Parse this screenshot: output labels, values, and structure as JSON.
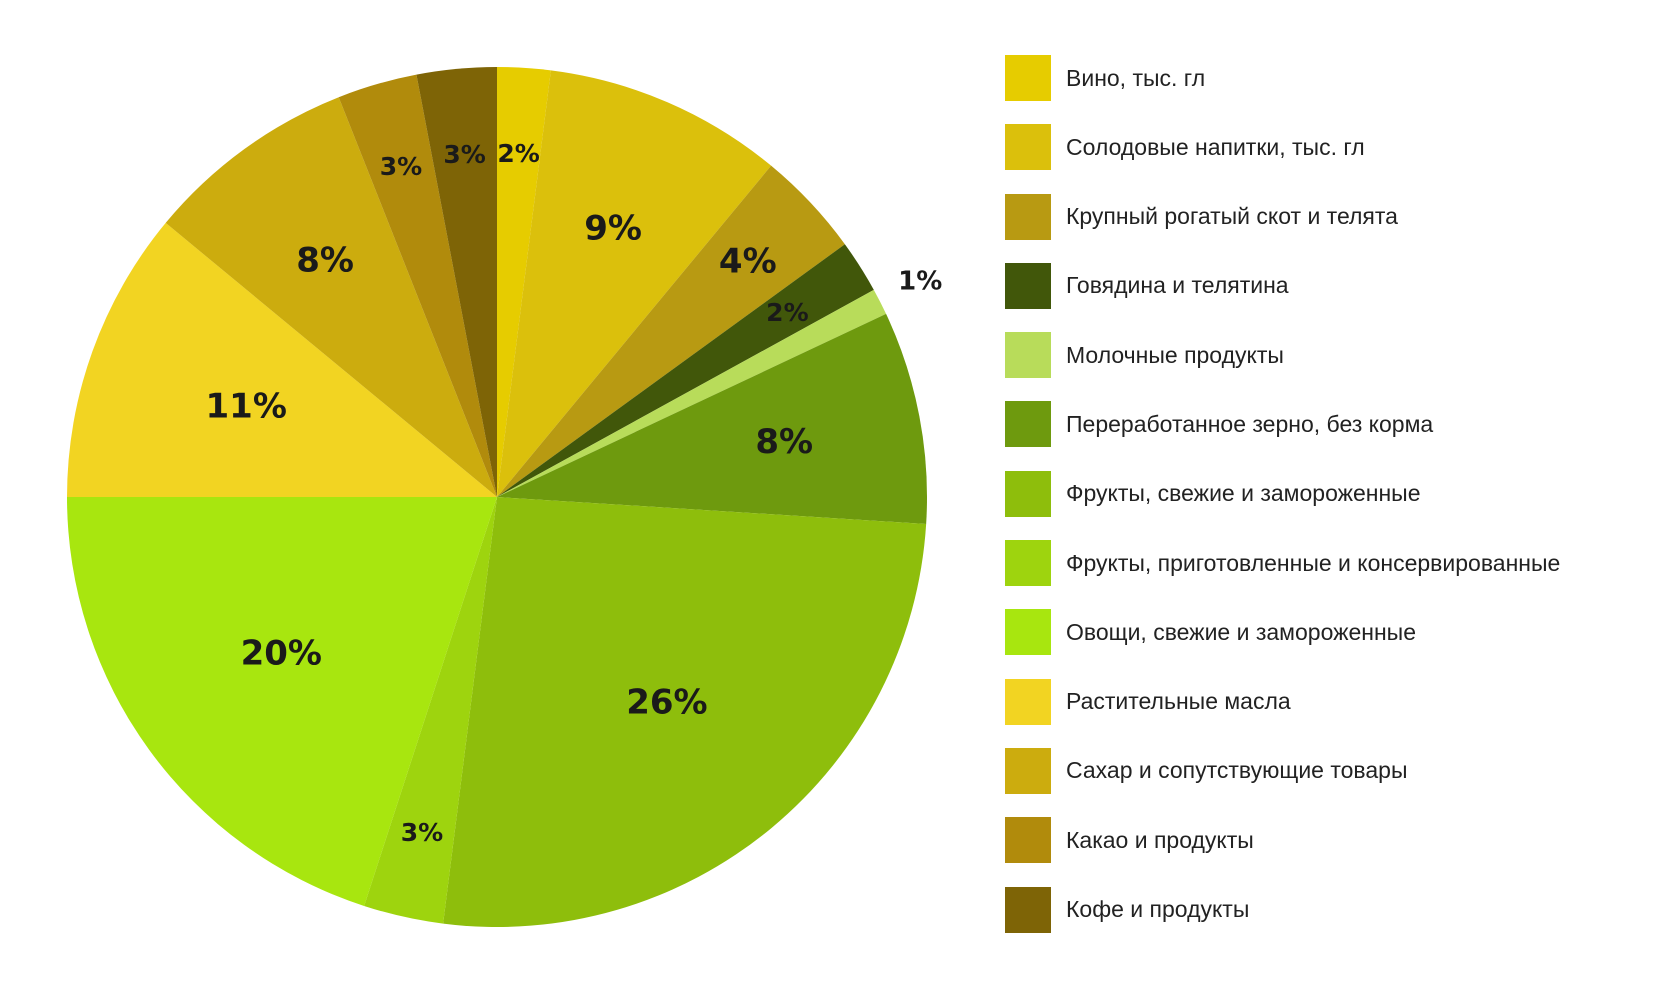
{
  "chart_data": {
    "type": "pie",
    "legend_position": "right",
    "slices": [
      {
        "name": "Вино, тыс. гл",
        "value": 2,
        "label": "2%",
        "color": "#e6cc00"
      },
      {
        "name": "Солодовые напитки, тыс. гл",
        "value": 9,
        "label": "9%",
        "color": "#dbc00c"
      },
      {
        "name": "Крупный рогатый скот и телята",
        "value": 4,
        "label": "4%",
        "color": "#b89a12"
      },
      {
        "name": "Говядина и телятина",
        "value": 2,
        "label": "2%",
        "color": "#41570a"
      },
      {
        "name": "Молочные продукты",
        "value": 1,
        "label": "1%",
        "color": "#b8dc5a"
      },
      {
        "name": "Переработанное зерно, без корма",
        "value": 8,
        "label": "8%",
        "color": "#6e9a0e"
      },
      {
        "name": "Фрукты, свежие и замороженные",
        "value": 26,
        "label": "26%",
        "color": "#8ebe0c"
      },
      {
        "name": "Фрукты, приготовленные и консервированные",
        "value": 3,
        "label": "3%",
        "color": "#9ed40e"
      },
      {
        "name": "Овощи, свежие и замороженные",
        "value": 20,
        "label": "20%",
        "color": "#a8e60f"
      },
      {
        "name": "Растительные масла",
        "value": 11,
        "label": "11%",
        "color": "#f2d422"
      },
      {
        "name": "Сахар и сопутствующие товары",
        "value": 8,
        "label": "8%",
        "color": "#ccac0e"
      },
      {
        "name": "Какао и продукты",
        "value": 3,
        "label": "3%",
        "color": "#b18b0c"
      },
      {
        "name": "Кофе и продукты",
        "value": 3,
        "label": "3%",
        "color": "#7e6406"
      }
    ]
  }
}
